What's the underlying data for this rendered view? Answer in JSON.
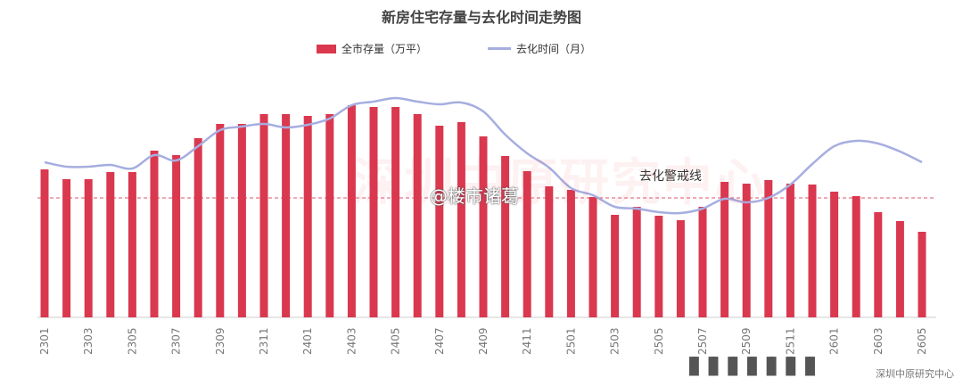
{
  "chart_data": {
    "type": "bar",
    "title": "新房住宅存量与去化时间走势图",
    "categories": [
      "2301",
      "2302",
      "2303",
      "2304",
      "2305",
      "2306",
      "2307",
      "2308",
      "2309",
      "2310",
      "2311",
      "2312",
      "2401",
      "2402",
      "2403",
      "2404",
      "2405",
      "2406",
      "2407",
      "2408",
      "2409",
      "2410",
      "2411",
      "2412",
      "2501",
      "2502",
      "2503",
      "2504",
      "2505",
      "2506",
      "2507",
      "2508",
      "2509",
      "2510",
      "2511",
      "2512",
      "2601",
      "2602",
      "2603",
      "2604",
      "2605"
    ],
    "tick_labels": [
      "2301",
      "2303",
      "2305",
      "2307",
      "2309",
      "2311",
      "2401",
      "2403",
      "2405",
      "2407",
      "2409",
      "2411",
      "2501",
      "2503",
      "2505",
      "2507",
      "2509",
      "2511",
      "2601",
      "2603",
      "2605"
    ],
    "series": [
      {
        "name": "全市存量（万平）",
        "kind": "bar",
        "color": "#d9384f",
        "values": [
          166,
          155,
          155,
          163,
          163,
          187,
          182,
          201,
          217,
          217,
          228,
          228,
          226,
          228,
          238,
          236,
          236,
          228,
          215,
          219,
          203,
          181,
          164,
          147,
          143,
          135,
          115,
          124,
          114,
          109,
          124,
          152,
          150,
          154,
          150,
          149,
          141,
          136,
          118,
          108,
          96
        ]
      },
      {
        "name": "去化时间（月）",
        "kind": "line",
        "color": "#a6aee0",
        "values": [
          174,
          169,
          169,
          171,
          167,
          182,
          176,
          192,
          210,
          214,
          217,
          213,
          216,
          223,
          238,
          242,
          246,
          242,
          239,
          241,
          231,
          205,
          184,
          168,
          145,
          137,
          124,
          122,
          118,
          117,
          122,
          133,
          129,
          134,
          149,
          172,
          192,
          198,
          195,
          186,
          174
        ]
      }
    ],
    "reference_line": {
      "label": "去化警戒线",
      "value": 134,
      "color": "#d9384f",
      "style": "dashed"
    },
    "ylim": [
      0,
      320
    ],
    "xlabel": "",
    "ylabel": "",
    "grid": false,
    "legend_position": "top-center"
  },
  "watermark": "@楼市诸葛",
  "source": "深圳中原研究中心",
  "colors": {
    "background": "#ffffff",
    "title": "#444444",
    "axis": "#cccccc",
    "tick_label": "#777777"
  }
}
